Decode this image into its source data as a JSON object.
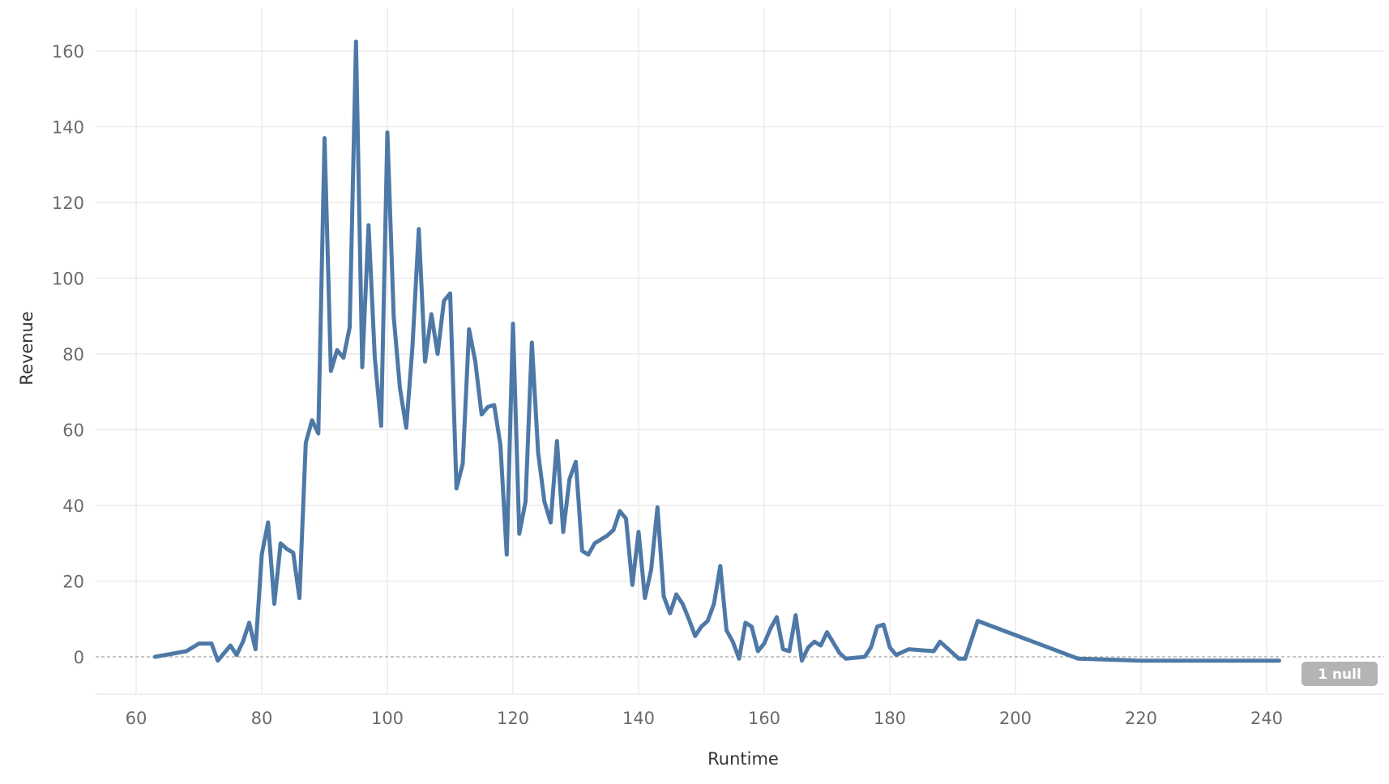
{
  "chart_data": {
    "type": "line",
    "xlabel": "Runtime",
    "ylabel": "Revenue",
    "xlim": [
      55,
      245
    ],
    "ylim": [
      -10,
      170
    ],
    "x_ticks": [
      60,
      80,
      100,
      120,
      140,
      160,
      180,
      200,
      220,
      240
    ],
    "y_ticks": [
      0,
      20,
      40,
      60,
      80,
      100,
      120,
      140,
      160
    ],
    "grid": true,
    "zero_line": true,
    "null_badge": "1 null",
    "colors": {
      "line": "#4e79a7",
      "grid": "#ececec",
      "zero_line": "#a8a8a8",
      "badge": "#b4b4b4"
    },
    "series": [
      {
        "x": [
          63,
          68,
          70,
          72,
          73,
          75,
          76,
          77,
          78,
          79,
          80,
          81,
          82,
          83,
          84,
          85,
          86,
          87,
          88,
          89,
          90,
          91,
          92,
          93,
          94,
          95,
          96,
          97,
          98,
          99,
          100,
          101,
          102,
          103,
          104,
          105,
          106,
          107,
          108,
          109,
          110,
          111,
          112,
          113,
          114,
          115,
          116,
          117,
          118,
          119,
          120,
          121,
          122,
          123,
          124,
          125,
          126,
          127,
          128,
          129,
          130,
          131,
          132,
          133,
          135,
          136,
          137,
          138,
          139,
          140,
          141,
          142,
          143,
          144,
          145,
          146,
          147,
          148,
          149,
          150,
          151,
          152,
          153,
          154,
          155,
          156,
          157,
          158,
          159,
          160,
          161,
          162,
          163,
          164,
          165,
          166,
          167,
          168,
          169,
          170,
          172,
          173,
          176,
          177,
          178,
          179,
          180,
          181,
          183,
          187,
          188,
          191,
          192,
          194,
          210,
          220,
          242
        ],
        "y": [
          0,
          1.5,
          3.5,
          3.5,
          -1,
          3,
          0.5,
          4,
          9,
          2,
          27,
          35.5,
          14,
          30,
          28.5,
          27.5,
          15.5,
          56.5,
          62.5,
          59,
          137,
          75.5,
          81,
          79,
          87,
          162.5,
          76.5,
          114,
          79,
          61,
          138.5,
          90,
          71,
          60.5,
          82,
          113,
          78,
          90.5,
          80,
          94,
          96,
          44.5,
          51,
          86.5,
          78,
          64,
          66,
          66.5,
          56,
          27,
          88,
          32.5,
          41,
          83,
          54,
          41,
          35.5,
          57,
          33,
          47,
          51.5,
          28,
          27,
          30,
          32,
          33.5,
          38.5,
          36.5,
          19,
          33,
          15.5,
          23,
          39.5,
          16,
          11.5,
          16.5,
          14,
          10,
          5.5,
          8,
          9.5,
          14,
          24,
          7,
          4,
          -0.5,
          9,
          8,
          1.5,
          3.5,
          7.5,
          10.5,
          2,
          1.5,
          11,
          -1,
          2.5,
          4,
          3,
          6.5,
          1,
          -0.5,
          0,
          2.5,
          8,
          8.5,
          2.5,
          0.5,
          2,
          1.5,
          4,
          -0.5,
          -0.5,
          9.5,
          -0.5,
          -1,
          -1
        ]
      }
    ]
  }
}
